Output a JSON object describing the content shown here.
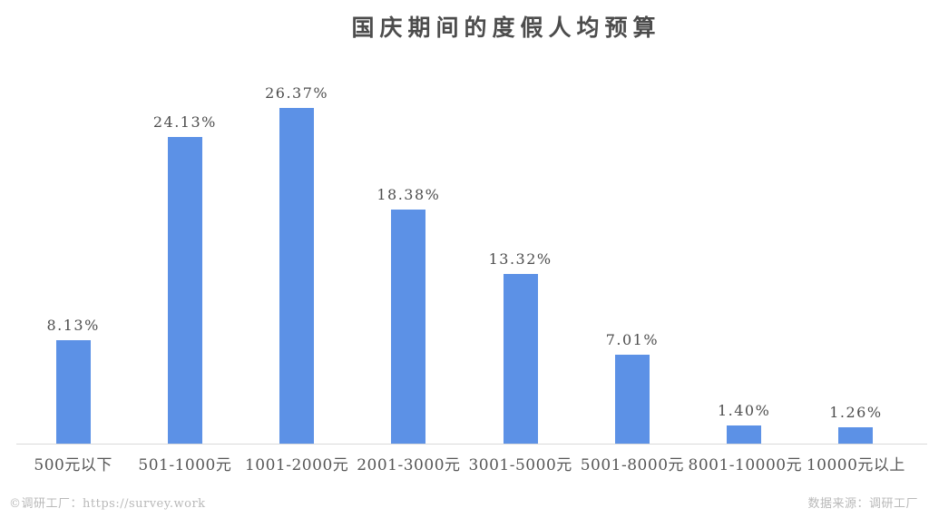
{
  "title": "国庆期间的度假人均预算",
  "chart_data": {
    "type": "bar",
    "title": "国庆期间的度假人均预算",
    "categories": [
      "500元以下",
      "501-1000元",
      "1001-2000元",
      "2001-3000元",
      "3001-5000元",
      "5001-8000元",
      "8001-10000元",
      "10000元以上"
    ],
    "values": [
      8.13,
      24.13,
      26.37,
      18.38,
      13.32,
      7.01,
      1.4,
      1.26
    ],
    "value_labels": [
      "8.13%",
      "24.13%",
      "26.37%",
      "18.38%",
      "13.32%",
      "7.01%",
      "1.40%",
      "1.26%"
    ],
    "unit": "%",
    "xlabel": "",
    "ylabel": "",
    "ylim": [
      0,
      30
    ],
    "grid": false,
    "legend": "none",
    "y_axis_visible": false,
    "bar_color": "#5c91e6"
  },
  "colors": {
    "bar": "#5c91e6",
    "axis_line": "#dadada",
    "title_text": "#4c4c4c",
    "value_label_text": "#4d4d4d",
    "category_text": "#565656",
    "footer_text": "#b9b9b9"
  },
  "footer": {
    "left": "©调研工厂：https://survey.work",
    "right": "数据来源：调研工厂"
  }
}
